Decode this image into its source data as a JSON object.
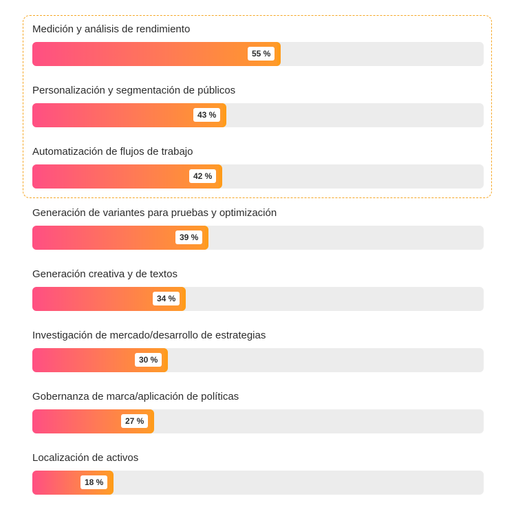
{
  "chart_data": {
    "type": "bar",
    "orientation": "horizontal",
    "categories": [
      "Medición y análisis de rendimiento",
      "Personalización y segmentación de públicos",
      "Automatización de flujos de trabajo",
      "Generación de variantes para pruebas y optimización",
      "Generación creativa y de textos",
      "Investigación de mercado/desarrollo de estrategias",
      "Gobernanza de marca/aplicación de políticas",
      "Localización de activos"
    ],
    "values": [
      55,
      43,
      42,
      39,
      34,
      30,
      27,
      18
    ],
    "value_labels": [
      "55 %",
      "43 %",
      "42 %",
      "39 %",
      "34 %",
      "30 %",
      "27 %",
      "18 %"
    ],
    "xlim": [
      0,
      100
    ],
    "highlighted_categories": [
      0,
      1,
      2
    ],
    "title": "",
    "xlabel": "",
    "ylabel": "",
    "colors": {
      "gradient_start": "#ff4f83",
      "gradient_end": "#ff9a2a",
      "track": "#ececec",
      "highlight_border": "#f5a623"
    },
    "grid": false,
    "legend": "none"
  }
}
